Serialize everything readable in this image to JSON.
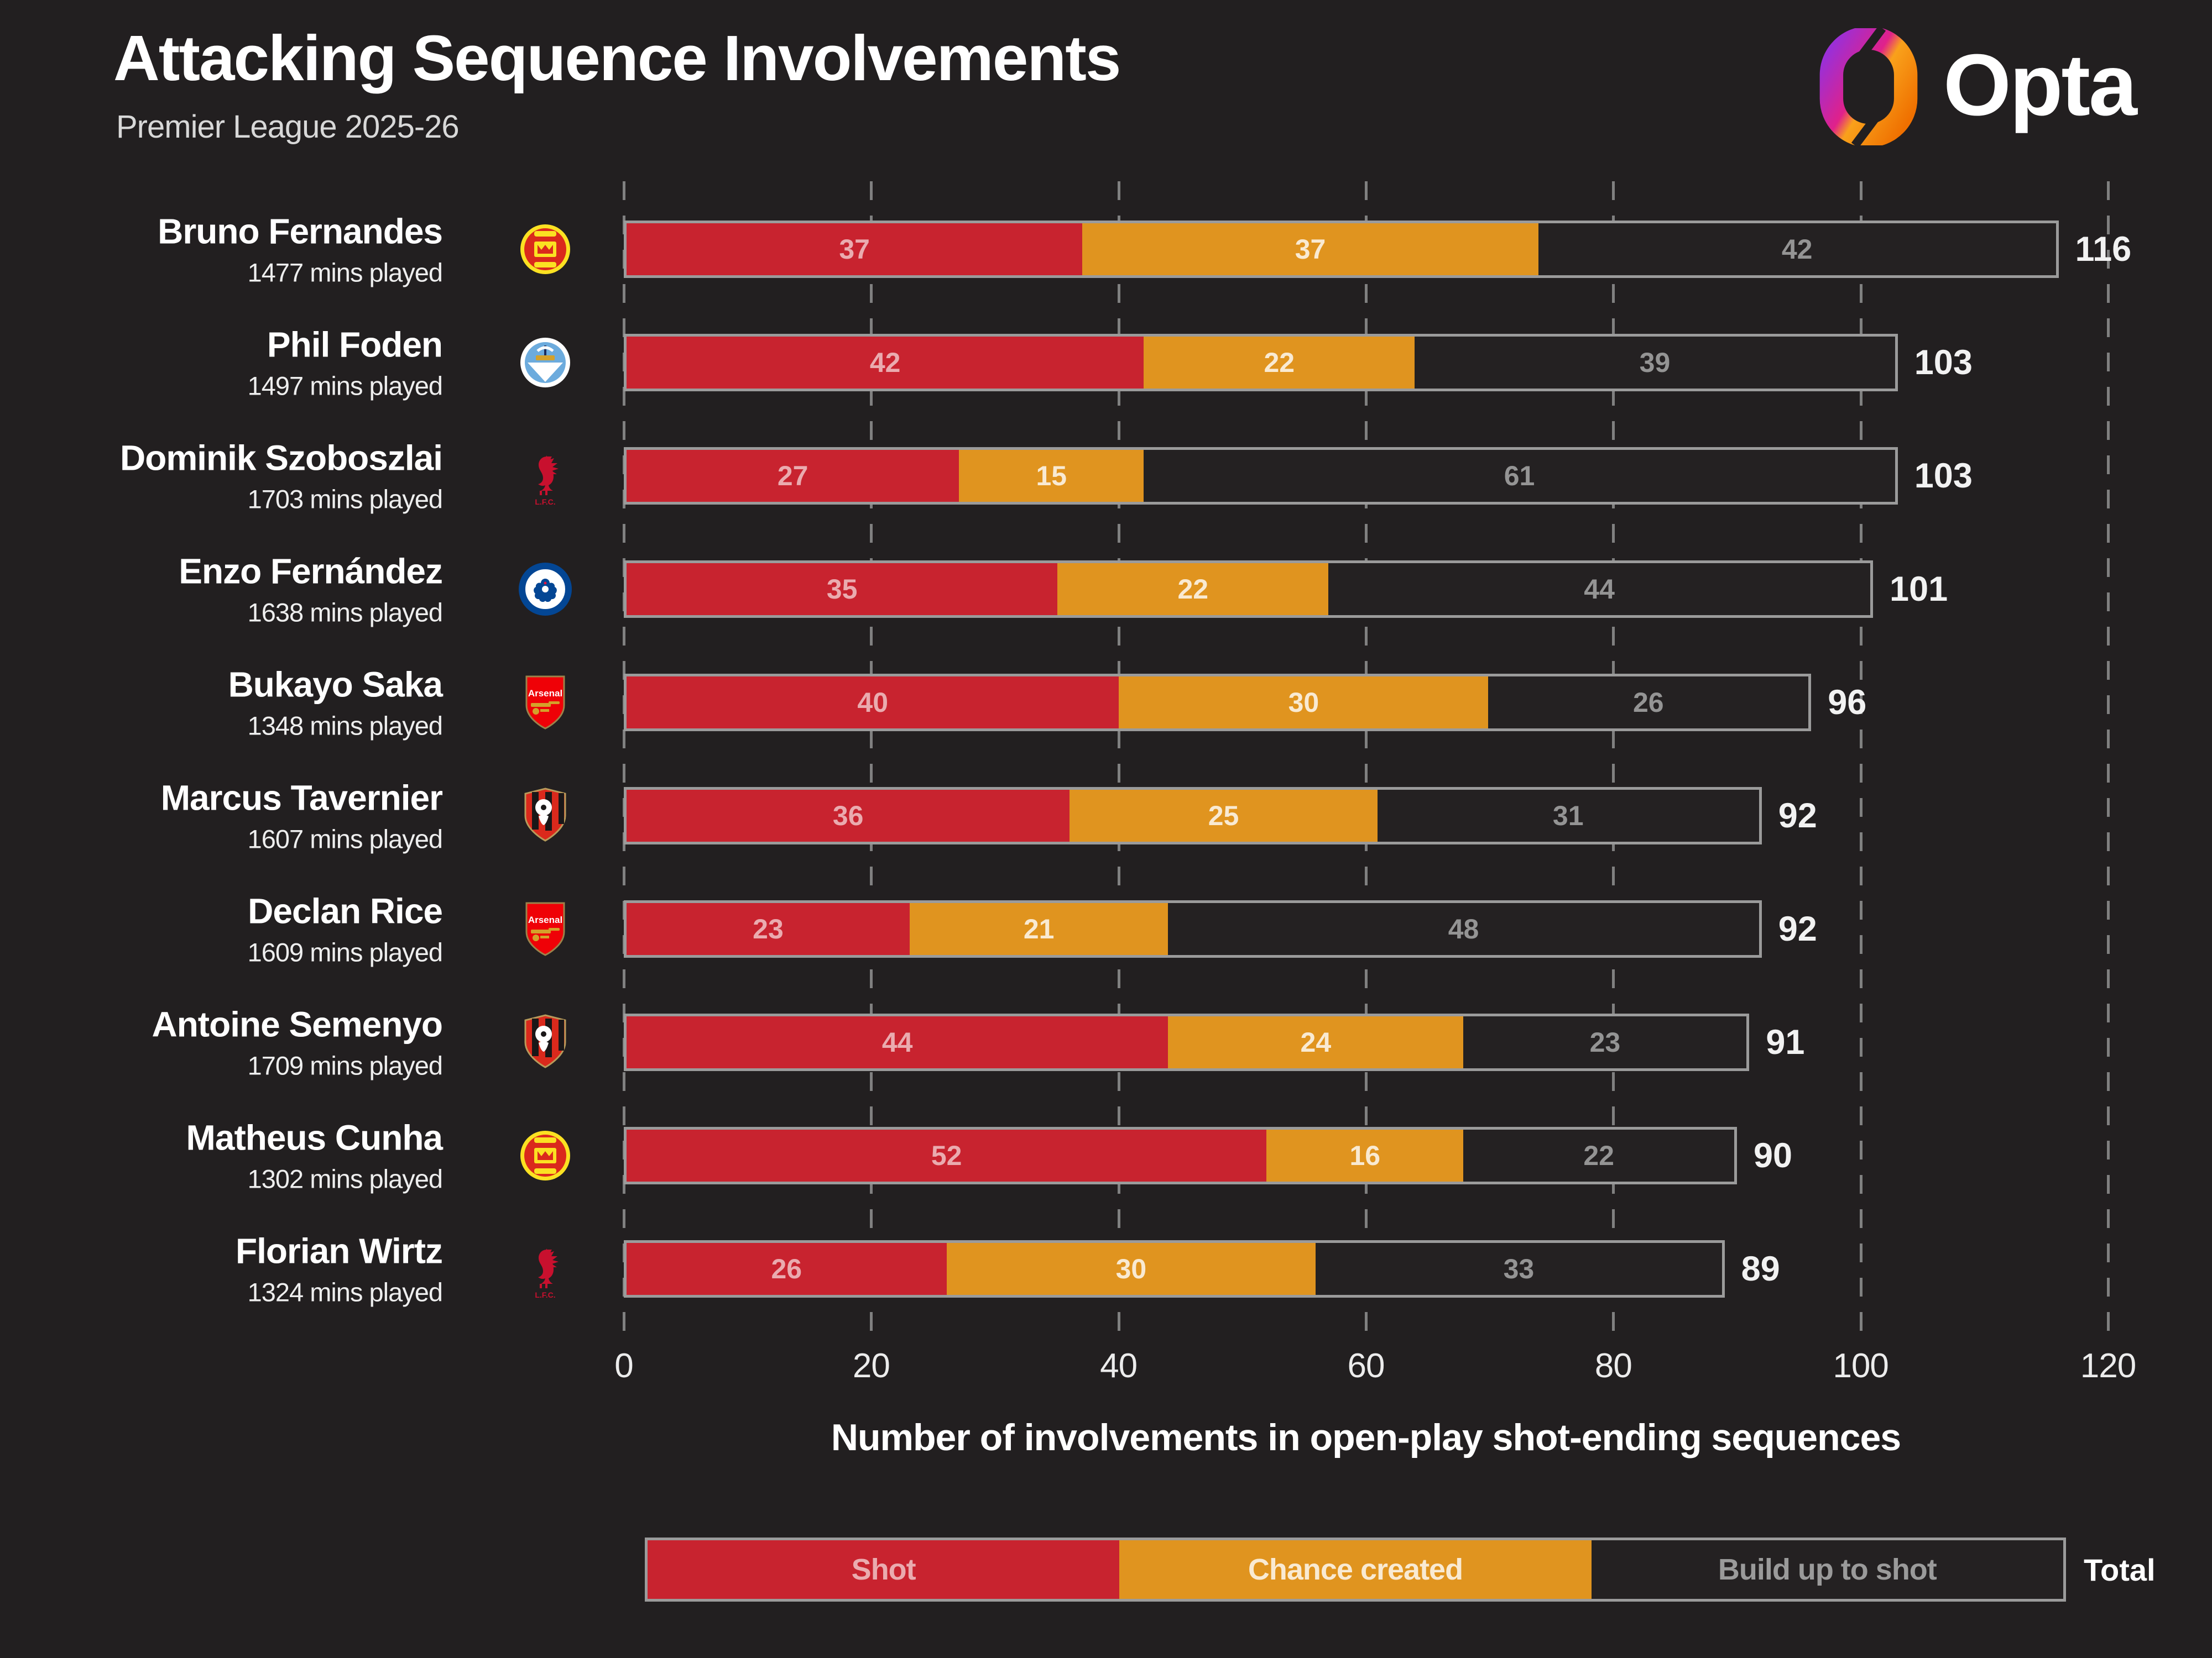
{
  "header": {
    "title": "Attacking Sequence Involvements",
    "subtitle": "Premier League 2025-26",
    "brand": "Opta"
  },
  "colors": {
    "background": "#221f20",
    "bar_border": "#9b9b9b",
    "gridline": "#808080",
    "total_text": "#f2f2f2",
    "brand_gradient": [
      "#9b2fd6",
      "#e0218a",
      "#f9a11b",
      "#ef7000"
    ]
  },
  "legend": {
    "items": [
      {
        "label": "Shot",
        "color": "#c8232f"
      },
      {
        "label": "Chance created",
        "color": "#e0941f"
      },
      {
        "label": "Build up to shot",
        "color": "#242122"
      }
    ],
    "total_label": "Total"
  },
  "chart_data": {
    "type": "bar",
    "orientation": "horizontal",
    "stacked": true,
    "title": "Attacking Sequence Involvements",
    "subtitle": "Premier League 2025-26",
    "xlabel": "Number of involvements in open-play shot-ending sequences",
    "xlim": [
      0,
      120
    ],
    "xticks": [
      0,
      20,
      40,
      60,
      80,
      100,
      120
    ],
    "gridlines": "dashed-vertical",
    "legend_position": "bottom",
    "series_names": [
      "Shot",
      "Chance created",
      "Build up to shot"
    ],
    "series_colors": {
      "shot": "#c8232f",
      "chance_created": "#e0941f",
      "build_up": "#242122"
    },
    "rows": [
      {
        "player": "Bruno Fernandes",
        "mins_label": "1477 mins played",
        "club": "Manchester United",
        "club_key": "manchester-united",
        "values": {
          "shot": 37,
          "chance_created": 37,
          "build_up": 42
        },
        "total": 116
      },
      {
        "player": "Phil Foden",
        "mins_label": "1497 mins played",
        "club": "Manchester City",
        "club_key": "manchester-city",
        "values": {
          "shot": 42,
          "chance_created": 22,
          "build_up": 39
        },
        "total": 103
      },
      {
        "player": "Dominik Szoboszlai",
        "mins_label": "1703 mins played",
        "club": "Liverpool",
        "club_key": "liverpool",
        "values": {
          "shot": 27,
          "chance_created": 15,
          "build_up": 61
        },
        "total": 103
      },
      {
        "player": "Enzo Fernández",
        "mins_label": "1638 mins played",
        "club": "Chelsea",
        "club_key": "chelsea",
        "values": {
          "shot": 35,
          "chance_created": 22,
          "build_up": 44
        },
        "total": 101
      },
      {
        "player": "Bukayo Saka",
        "mins_label": "1348 mins played",
        "club": "Arsenal",
        "club_key": "arsenal",
        "values": {
          "shot": 40,
          "chance_created": 30,
          "build_up": 26
        },
        "total": 96
      },
      {
        "player": "Marcus Tavernier",
        "mins_label": "1607 mins played",
        "club": "Bournemouth",
        "club_key": "bournemouth",
        "values": {
          "shot": 36,
          "chance_created": 25,
          "build_up": 31
        },
        "total": 92
      },
      {
        "player": "Declan Rice",
        "mins_label": "1609 mins played",
        "club": "Arsenal",
        "club_key": "arsenal",
        "values": {
          "shot": 23,
          "chance_created": 21,
          "build_up": 48
        },
        "total": 92
      },
      {
        "player": "Antoine Semenyo",
        "mins_label": "1709 mins played",
        "club": "Bournemouth",
        "club_key": "bournemouth",
        "values": {
          "shot": 44,
          "chance_created": 24,
          "build_up": 23
        },
        "total": 91
      },
      {
        "player": "Matheus Cunha",
        "mins_label": "1302 mins played",
        "club": "Manchester United",
        "club_key": "manchester-united",
        "values": {
          "shot": 52,
          "chance_created": 16,
          "build_up": 22
        },
        "total": 90
      },
      {
        "player": "Florian Wirtz",
        "mins_label": "1324 mins played",
        "club": "Liverpool",
        "club_key": "liverpool",
        "values": {
          "shot": 26,
          "chance_created": 30,
          "build_up": 33
        },
        "total": 89
      }
    ]
  }
}
